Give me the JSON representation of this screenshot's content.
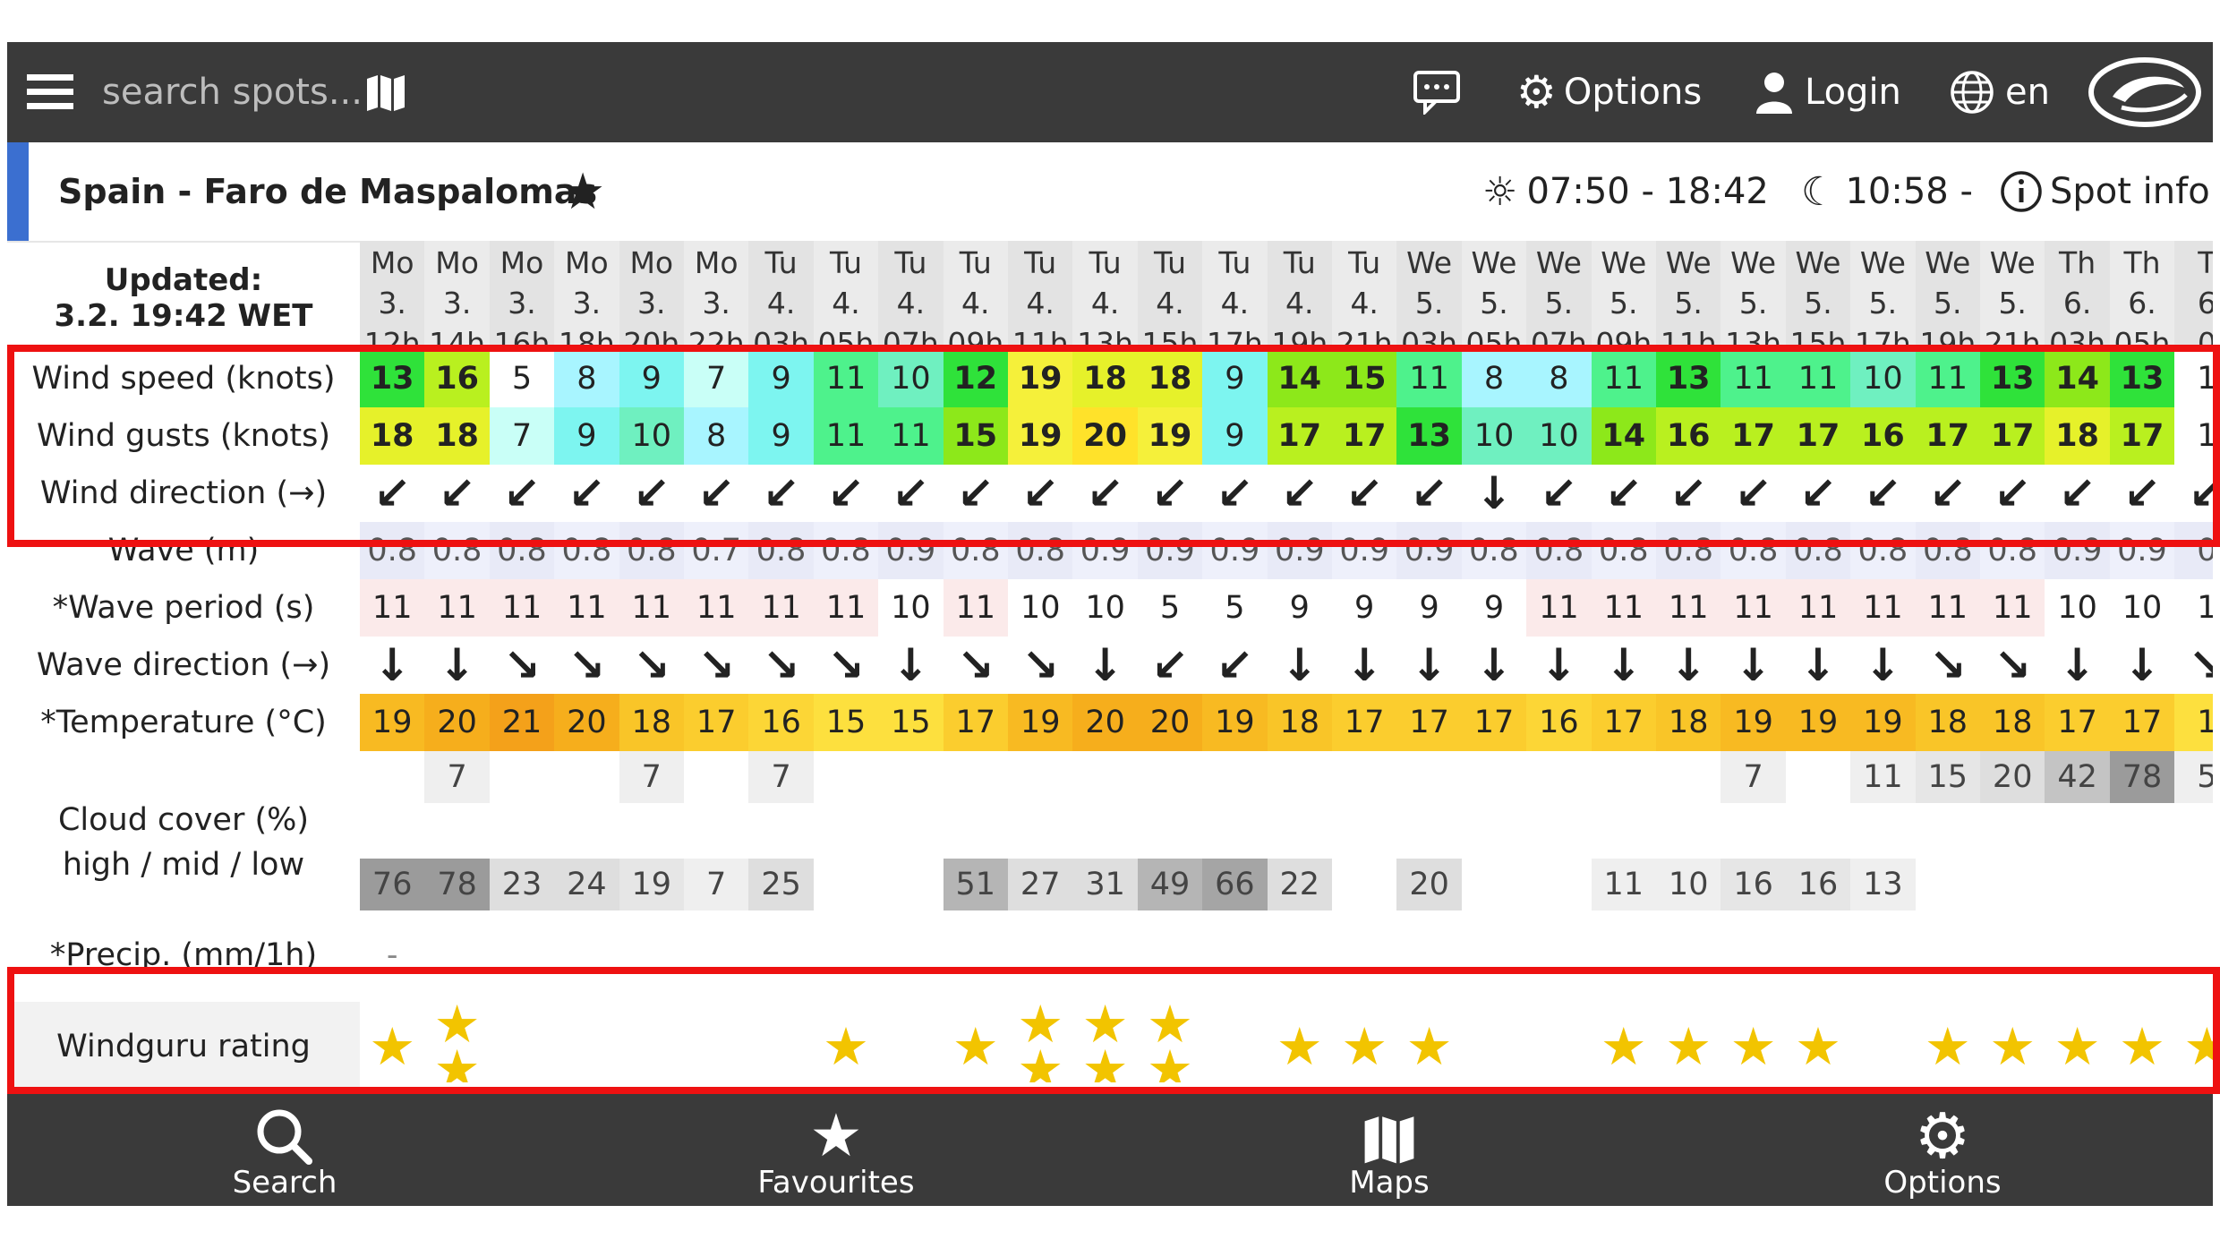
{
  "topbar": {
    "search_placeholder": "search spots...",
    "options_label": "Options",
    "login_label": "Login",
    "lang_label": "en"
  },
  "spot": {
    "name": "Spain - Faro de Maspalomas",
    "sun_times": "07:50 - 18:42",
    "moon_times": "10:58 -",
    "info_label": "Spot info"
  },
  "table": {
    "updated_label": "Updated:",
    "updated_value": "3.2. 19:42 WET",
    "row_labels": {
      "wind_speed": "Wind speed (knots)",
      "wind_gusts": "Wind gusts (knots)",
      "wind_dir": "Wind direction (→)",
      "wave": "Wave (m)",
      "wave_period": "*Wave period (s)",
      "wave_dir": "Wave direction (→)",
      "temperature": "*Temperature (°C)",
      "cloud_title": "Cloud cover (%)",
      "cloud_sub": "high / mid / low",
      "precip": "*Precip. (mm/1h)",
      "rating": "Windguru rating"
    },
    "columns": [
      {
        "day": "Mo",
        "date": "3.",
        "hour": "12h",
        "ws": 13,
        "wg": 18,
        "wd": "↙",
        "wave": "0.8",
        "wp": "11",
        "wvd": "↓",
        "t": 19,
        "ch": "",
        "cl": "76",
        "r": 1
      },
      {
        "day": "Mo",
        "date": "3.",
        "hour": "14h",
        "ws": 16,
        "wg": 18,
        "wd": "↙",
        "wave": "0.8",
        "wp": "11",
        "wvd": "↓",
        "t": 20,
        "ch": "7",
        "cl": "78",
        "r": 2
      },
      {
        "day": "Mo",
        "date": "3.",
        "hour": "16h",
        "ws": 5,
        "wg": 7,
        "wd": "↙",
        "wave": "0.8",
        "wp": "11",
        "wvd": "↘",
        "t": 21,
        "ch": "",
        "cl": "23",
        "r": 0
      },
      {
        "day": "Mo",
        "date": "3.",
        "hour": "18h",
        "ws": 8,
        "wg": 9,
        "wd": "↙",
        "wave": "0.8",
        "wp": "11",
        "wvd": "↘",
        "t": 20,
        "ch": "",
        "cl": "24",
        "r": 0
      },
      {
        "day": "Mo",
        "date": "3.",
        "hour": "20h",
        "ws": 9,
        "wg": 10,
        "wd": "↙",
        "wave": "0.8",
        "wp": "11",
        "wvd": "↘",
        "t": 18,
        "ch": "7",
        "cl": "19",
        "r": 0
      },
      {
        "day": "Mo",
        "date": "3.",
        "hour": "22h",
        "ws": 7,
        "wg": 8,
        "wd": "↙",
        "wave": "0.7",
        "wp": "11",
        "wvd": "↘",
        "t": 17,
        "ch": "",
        "cl": "7",
        "r": 0
      },
      {
        "day": "Tu",
        "date": "4.",
        "hour": "03h",
        "ws": 9,
        "wg": 9,
        "wd": "↙",
        "wave": "0.8",
        "wp": "11",
        "wvd": "↘",
        "t": 16,
        "ch": "7",
        "cl": "25",
        "r": 0
      },
      {
        "day": "Tu",
        "date": "4.",
        "hour": "05h",
        "ws": 11,
        "wg": 11,
        "wd": "↙",
        "wave": "0.8",
        "wp": "11",
        "wvd": "↘",
        "t": 15,
        "ch": "",
        "cl": "",
        "r": 1
      },
      {
        "day": "Tu",
        "date": "4.",
        "hour": "07h",
        "ws": 10,
        "wg": 11,
        "wd": "↙",
        "wave": "0.9",
        "wp": "10",
        "wvd": "↓",
        "t": 15,
        "ch": "",
        "cl": "",
        "r": 0
      },
      {
        "day": "Tu",
        "date": "4.",
        "hour": "09h",
        "ws": 12,
        "wg": 15,
        "wd": "↙",
        "wave": "0.8",
        "wp": "11",
        "wvd": "↘",
        "t": 17,
        "ch": "",
        "cl": "51",
        "r": 1
      },
      {
        "day": "Tu",
        "date": "4.",
        "hour": "11h",
        "ws": 19,
        "wg": 19,
        "wd": "↙",
        "wave": "0.8",
        "wp": "10",
        "wvd": "↘",
        "t": 19,
        "ch": "",
        "cl": "27",
        "r": 2
      },
      {
        "day": "Tu",
        "date": "4.",
        "hour": "13h",
        "ws": 18,
        "wg": 20,
        "wd": "↙",
        "wave": "0.9",
        "wp": "10",
        "wvd": "↓",
        "t": 20,
        "ch": "",
        "cl": "31",
        "r": 2
      },
      {
        "day": "Tu",
        "date": "4.",
        "hour": "15h",
        "ws": 18,
        "wg": 19,
        "wd": "↙",
        "wave": "0.9",
        "wp": "5",
        "wvd": "↙",
        "t": 20,
        "ch": "",
        "cl": "49",
        "r": 2
      },
      {
        "day": "Tu",
        "date": "4.",
        "hour": "17h",
        "ws": 9,
        "wg": 9,
        "wd": "↙",
        "wave": "0.9",
        "wp": "5",
        "wvd": "↙",
        "t": 19,
        "ch": "",
        "cl": "66",
        "r": 0
      },
      {
        "day": "Tu",
        "date": "4.",
        "hour": "19h",
        "ws": 14,
        "wg": 17,
        "wd": "↙",
        "wave": "0.9",
        "wp": "9",
        "wvd": "↓",
        "t": 18,
        "ch": "",
        "cl": "22",
        "r": 1
      },
      {
        "day": "Tu",
        "date": "4.",
        "hour": "21h",
        "ws": 15,
        "wg": 17,
        "wd": "↙",
        "wave": "0.9",
        "wp": "9",
        "wvd": "↓",
        "t": 17,
        "ch": "",
        "cl": "",
        "r": 1
      },
      {
        "day": "We",
        "date": "5.",
        "hour": "03h",
        "ws": 11,
        "wg": 13,
        "wd": "↙",
        "wave": "0.9",
        "wp": "9",
        "wvd": "↓",
        "t": 17,
        "ch": "",
        "cl": "20",
        "r": 1
      },
      {
        "day": "We",
        "date": "5.",
        "hour": "05h",
        "ws": 8,
        "wg": 10,
        "wd": "↓",
        "wave": "0.8",
        "wp": "9",
        "wvd": "↓",
        "t": 17,
        "ch": "",
        "cl": "",
        "r": 0
      },
      {
        "day": "We",
        "date": "5.",
        "hour": "07h",
        "ws": 8,
        "wg": 10,
        "wd": "↙",
        "wave": "0.8",
        "wp": "11",
        "wvd": "↓",
        "t": 16,
        "ch": "",
        "cl": "",
        "r": 0
      },
      {
        "day": "We",
        "date": "5.",
        "hour": "09h",
        "ws": 11,
        "wg": 14,
        "wd": "↙",
        "wave": "0.8",
        "wp": "11",
        "wvd": "↓",
        "t": 17,
        "ch": "",
        "cl": "11",
        "r": 1
      },
      {
        "day": "We",
        "date": "5.",
        "hour": "11h",
        "ws": 13,
        "wg": 16,
        "wd": "↙",
        "wave": "0.8",
        "wp": "11",
        "wvd": "↓",
        "t": 18,
        "ch": "",
        "cl": "10",
        "r": 1
      },
      {
        "day": "We",
        "date": "5.",
        "hour": "13h",
        "ws": 11,
        "wg": 17,
        "wd": "↙",
        "wave": "0.8",
        "wp": "11",
        "wvd": "↓",
        "t": 19,
        "ch": "7",
        "cl": "16",
        "r": 1
      },
      {
        "day": "We",
        "date": "5.",
        "hour": "15h",
        "ws": 11,
        "wg": 17,
        "wd": "↙",
        "wave": "0.8",
        "wp": "11",
        "wvd": "↓",
        "t": 19,
        "ch": "",
        "cl": "16",
        "r": 1
      },
      {
        "day": "We",
        "date": "5.",
        "hour": "17h",
        "ws": 10,
        "wg": 16,
        "wd": "↙",
        "wave": "0.8",
        "wp": "11",
        "wvd": "↓",
        "t": 19,
        "ch": "11",
        "cl": "13",
        "r": 0
      },
      {
        "day": "We",
        "date": "5.",
        "hour": "19h",
        "ws": 11,
        "wg": 17,
        "wd": "↙",
        "wave": "0.8",
        "wp": "11",
        "wvd": "↘",
        "t": 18,
        "ch": "15",
        "cl": "",
        "r": 1
      },
      {
        "day": "We",
        "date": "5.",
        "hour": "21h",
        "ws": 13,
        "wg": 17,
        "wd": "↙",
        "wave": "0.8",
        "wp": "11",
        "wvd": "↘",
        "t": 18,
        "ch": "20",
        "cl": "",
        "r": 1
      },
      {
        "day": "Th",
        "date": "6.",
        "hour": "03h",
        "ws": 14,
        "wg": 18,
        "wd": "↙",
        "wave": "0.9",
        "wp": "10",
        "wvd": "↓",
        "t": 17,
        "ch": "42",
        "cl": "",
        "r": 1
      },
      {
        "day": "Th",
        "date": "6.",
        "hour": "05h",
        "ws": 13,
        "wg": 17,
        "wd": "↙",
        "wave": "0.9",
        "wp": "10",
        "wvd": "↓",
        "t": 17,
        "ch": "78",
        "cl": "",
        "r": 1
      },
      {
        "day": "T",
        "date": "6",
        "hour": "0",
        "ws": "1",
        "wg": "1",
        "wd": "↙",
        "wave": "0",
        "wp": "1",
        "wvd": "↘",
        "t": "1",
        "ch": "5",
        "cl": "",
        "r": 1
      }
    ]
  },
  "bottom_nav": {
    "search": "Search",
    "favourites": "Favourites",
    "maps": "Maps",
    "options": "Options"
  },
  "colors": {
    "topbar": "#3a3a3a",
    "accent": "#3b6fd0",
    "highlight": "#ee1111",
    "star": "#f2c400"
  }
}
